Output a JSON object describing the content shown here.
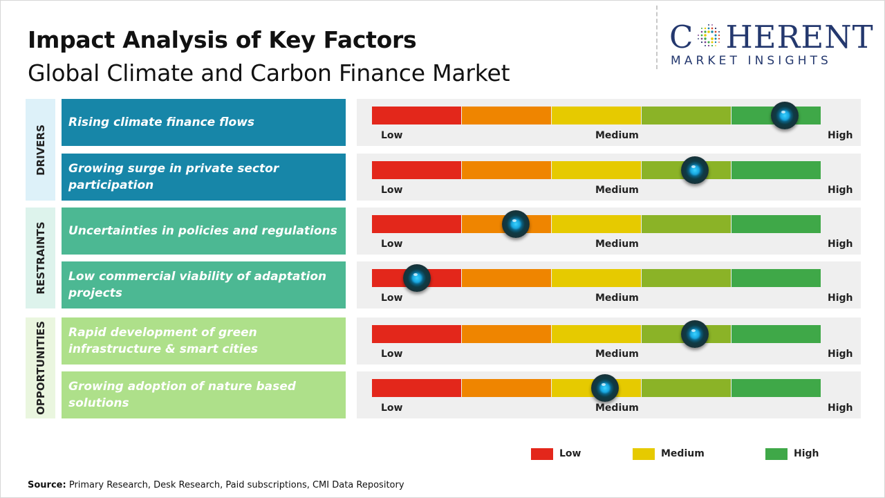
{
  "title": "Impact Analysis of Key Factors",
  "subtitle": "Global Climate and Carbon Finance Market",
  "logo": {
    "main": "COHERENT",
    "sub": "MARKET INSIGHTS"
  },
  "colors": {
    "low": "#e3271b",
    "low_mid": "#ef8500",
    "medium": "#e6ca00",
    "mid_high": "#8bb327",
    "high": "#3fa848",
    "drivers": "#1786a8",
    "restraints": "#4cb893",
    "opportunities": "#aee08a",
    "drivers_cat": "#ddf1f9",
    "restraints_cat": "#ddf3ec",
    "opportunities_cat": "#eaf6df"
  },
  "chart_data": {
    "type": "table",
    "scale": [
      "Low",
      "Medium",
      "High"
    ],
    "segments": 5,
    "categories": [
      {
        "name": "DRIVERS",
        "factors": [
          {
            "label": "Rising climate finance flows",
            "impact": 4.6
          },
          {
            "label": "Growing surge in private sector participation",
            "impact": 3.6
          }
        ]
      },
      {
        "name": "RESTRAINTS",
        "factors": [
          {
            "label": "Uncertainties in policies and regulations",
            "impact": 1.6
          },
          {
            "label": "Low commercial viability of adaptation projects",
            "impact": 0.5
          }
        ]
      },
      {
        "name": "OPPORTUNITIES",
        "factors": [
          {
            "label": "Rapid development of green infrastructure & smart cities",
            "impact": 3.6
          },
          {
            "label": "Growing adoption of nature based solutions",
            "impact": 2.6
          }
        ]
      }
    ]
  },
  "legend": [
    {
      "label": "Low",
      "color": "#e3271b"
    },
    {
      "label": "Medium",
      "color": "#e6ca00"
    },
    {
      "label": "High",
      "color": "#3fa848"
    }
  ],
  "source": {
    "label": "Source:",
    "text": "Primary Research, Desk Research, Paid subscriptions, CMI Data Repository"
  }
}
